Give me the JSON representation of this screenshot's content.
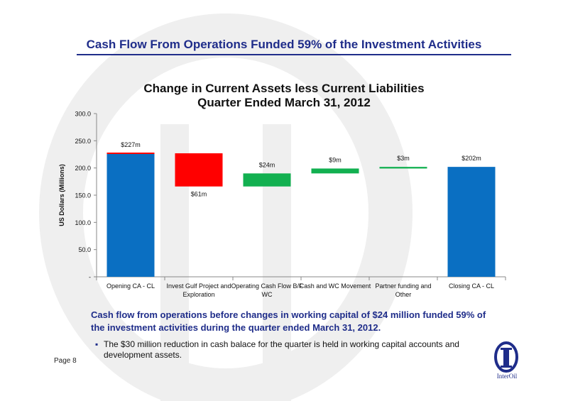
{
  "slide": {
    "title": "Cash Flow From Operations Funded 59% of the Investment Activities",
    "page_label": "Page 8",
    "summary": "Cash flow from operations before changes in working capital of $24 million funded 59% of the investment activities during the quarter ended March 31, 2012.",
    "bullet": "The $30 million reduction in cash balace for the quarter is held in working capital accounts and development assets.",
    "logo_text": "InterOil"
  },
  "chart_data": {
    "type": "bar",
    "subtype": "waterfall",
    "title_line1": "Change in Current Assets less Current Liabilities",
    "title_line2": "Quarter Ended March 31, 2012",
    "ylabel": "US Dollars (Millions)",
    "ylim": [
      0,
      300
    ],
    "yticks": [
      0,
      50,
      100,
      150,
      200,
      250,
      300
    ],
    "ytick_labels": [
      "-",
      "50.0",
      "100.0",
      "150.0",
      "200.0",
      "250.0",
      "300.0"
    ],
    "grid": false,
    "categories": [
      [
        "Opening CA - CL"
      ],
      [
        "Invest Gulf Project and",
        "Exploration"
      ],
      [
        "Operating Cash Flow B/F",
        "WC"
      ],
      [
        "Cash and WC Movement"
      ],
      [
        "Partner funding and",
        "Other"
      ],
      [
        "Closing CA - CL"
      ]
    ],
    "bars": [
      {
        "start": 0,
        "end": 227,
        "label": "$227m",
        "color": "#0a6fc2",
        "label_pos": "above"
      },
      {
        "start": 227,
        "end": 166,
        "label": "$61m",
        "color": "#ff0000",
        "label_pos": "below"
      },
      {
        "start": 166,
        "end": 190,
        "label": "$24m",
        "color": "#12b050",
        "label_pos": "above"
      },
      {
        "start": 190,
        "end": 199,
        "label": "$9m",
        "color": "#12b050",
        "label_pos": "above"
      },
      {
        "start": 199,
        "end": 202,
        "label": "$3m",
        "color": "#12b050",
        "label_pos": "above"
      },
      {
        "start": 0,
        "end": 202,
        "label": "$202m",
        "color": "#0a6fc2",
        "label_pos": "above"
      }
    ],
    "opening_cap": {
      "value": 227,
      "color": "#ff0000"
    }
  },
  "colors": {
    "brand": "#1f2d8a",
    "watermark": "#efefef"
  }
}
